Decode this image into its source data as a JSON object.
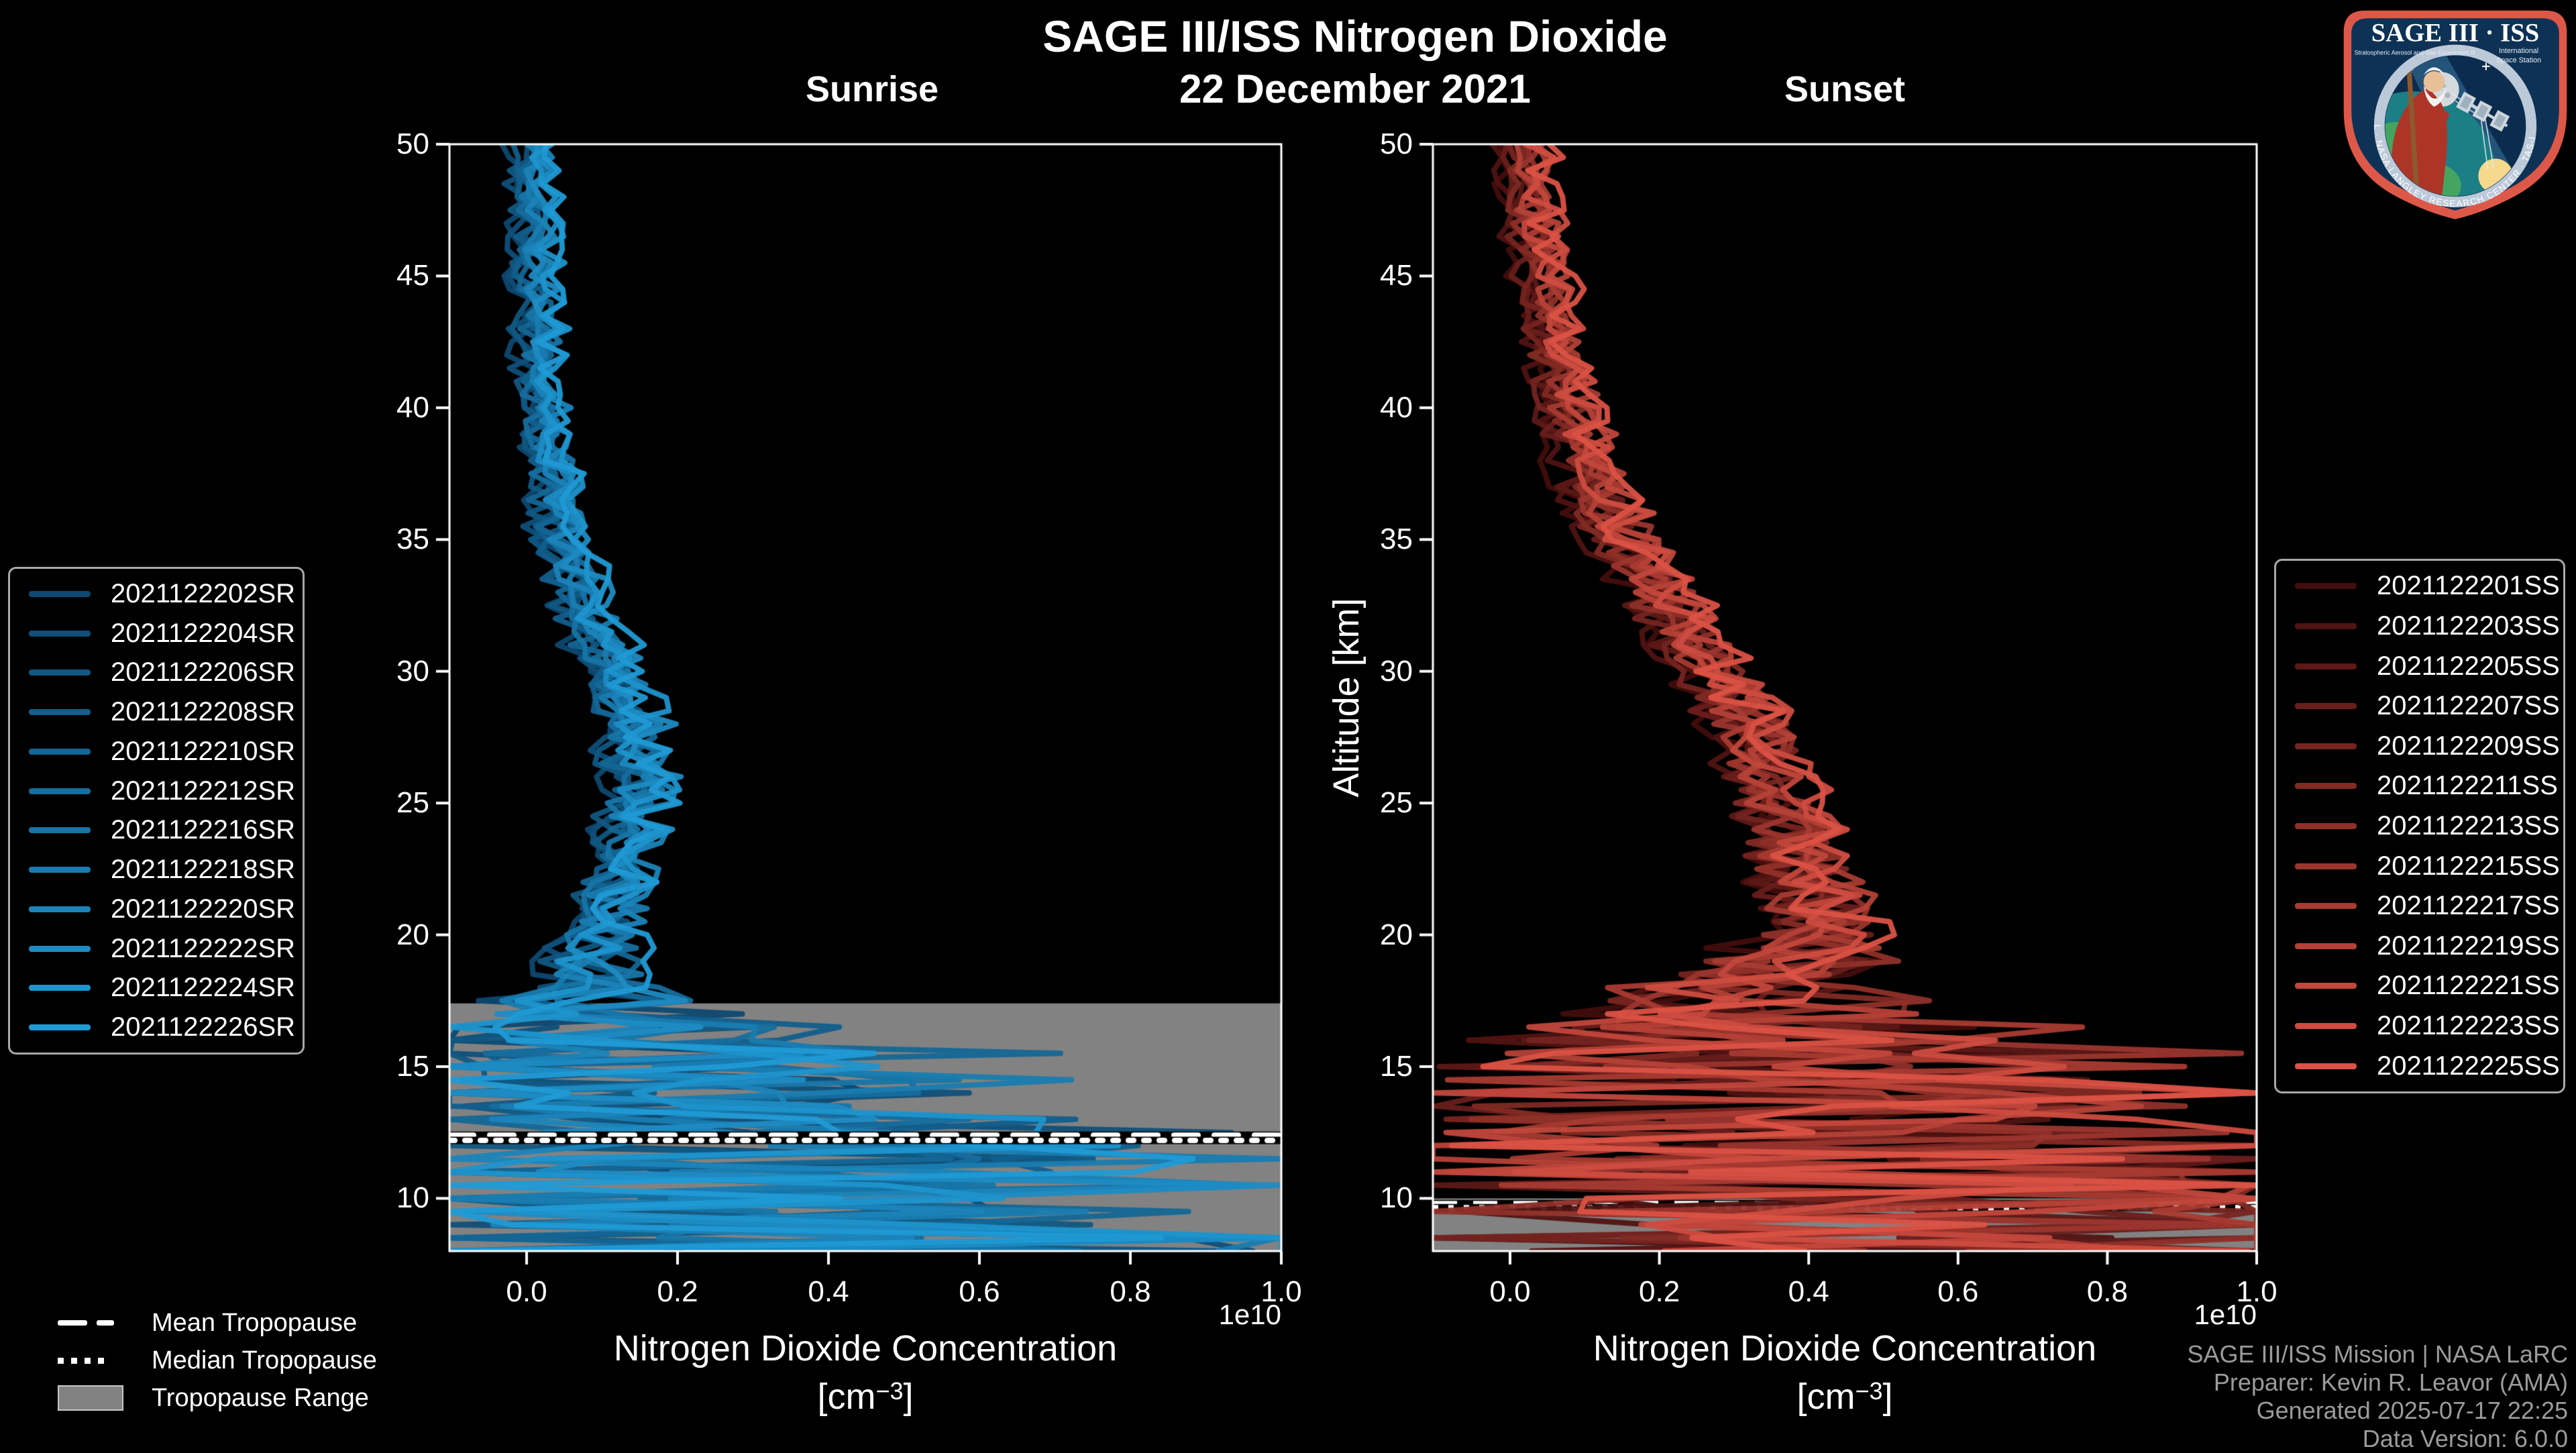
{
  "title": "SAGE III/ISS Nitrogen Dioxide",
  "date": "22 December 2021",
  "panels_header": {
    "left": "Sunrise",
    "right": "Sunset"
  },
  "axes": {
    "ylabel": "Altitude [km]",
    "xlabel": "Nitrogen Dioxide Concentration",
    "xlabel_unit_open": "[cm",
    "xlabel_unit_exp": "−3",
    "xlabel_unit_close": "]",
    "offset_text": "1e10",
    "x_tick_labels": [
      "0.0",
      "0.2",
      "0.4",
      "0.6",
      "0.8",
      "1.0"
    ],
    "y_tick_labels": [
      "10",
      "15",
      "20",
      "25",
      "30",
      "35",
      "40",
      "45",
      "50"
    ]
  },
  "tropopause_legend": {
    "mean": "Mean Tropopause",
    "median": "Median Tropopause",
    "range": "Tropopause Range"
  },
  "attribution": {
    "lines": [
      "SAGE III/ISS Mission | NASA LaRC",
      "Preparer: Kevin R. Leavor (AMA)",
      "Generated 2025-07-17 22:25",
      "Data Version: 6.0.0"
    ]
  },
  "logo": {
    "title": "SAGE III · ISS",
    "subtitle_left": "Stratospheric Aerosol and Gas Experiment III",
    "subtitle_right_1": "International",
    "subtitle_right_2": "Space Station",
    "ring_text": "BALL · NASA LANGLEY RESEARCH CENTER · TAS-I · ESA"
  },
  "colors": {
    "background": "#000000",
    "foreground": "#ffffff",
    "attribution_gray": "#9b9b9b",
    "tropopause_band": "#828282",
    "legend_border": "#a8a8a8",
    "sunrise_dark": "#0d4870",
    "sunrise_bright": "#209ad5",
    "sunset_dark": "#420d0d",
    "sunset_bright": "#db5245"
  },
  "chart_data": {
    "type": "line",
    "x_axis": {
      "label": "Nitrogen Dioxide Concentration [cm^-3]",
      "offset_scale": "1e10",
      "ticks_1e10": [
        0.0,
        0.2,
        0.4,
        0.6,
        0.8,
        1.0
      ],
      "lim_1e10": [
        -0.102,
        1.0
      ]
    },
    "y_axis": {
      "label": "Altitude [km]",
      "ticks_km": [
        10,
        15,
        20,
        25,
        30,
        35,
        40,
        45,
        50
      ],
      "lim_km": [
        8,
        50
      ]
    },
    "altitude_step_km": 0.5,
    "panels": [
      {
        "id": "sunrise",
        "title": "Sunrise",
        "color_dark": "#0d4870",
        "color_bright": "#209ad5",
        "series": [
          {
            "name": "2021122202SR",
            "seed": 101
          },
          {
            "name": "2021122204SR",
            "seed": 102
          },
          {
            "name": "2021122206SR",
            "seed": 103
          },
          {
            "name": "2021122208SR",
            "seed": 104
          },
          {
            "name": "2021122210SR",
            "seed": 105
          },
          {
            "name": "2021122212SR",
            "seed": 106
          },
          {
            "name": "2021122216SR",
            "seed": 107
          },
          {
            "name": "2021122218SR",
            "seed": 108
          },
          {
            "name": "2021122220SR",
            "seed": 109
          },
          {
            "name": "2021122222SR",
            "seed": 110
          },
          {
            "name": "2021122224SR",
            "seed": 111
          },
          {
            "name": "2021122226SR",
            "seed": 112
          }
        ],
        "profile": {
          "altitude_km": [
            50,
            47,
            44,
            41,
            38,
            35,
            32,
            30,
            28,
            26,
            24,
            22,
            20,
            18.5,
            17,
            15.5,
            14,
            12.5,
            11,
            9.5,
            8
          ],
          "mean_1e10": [
            0.005,
            0.01,
            0.015,
            0.02,
            0.03,
            0.045,
            0.08,
            0.12,
            0.145,
            0.15,
            0.14,
            0.12,
            0.1,
            0.09,
            0.12,
            0.14,
            0.18,
            0.28,
            0.35,
            0.42,
            0.48
          ],
          "sigma_1e10": [
            0.02,
            0.02,
            0.025,
            0.025,
            0.03,
            0.03,
            0.035,
            0.04,
            0.045,
            0.045,
            0.04,
            0.04,
            0.05,
            0.08,
            0.2,
            0.33,
            0.45,
            0.52,
            0.58,
            0.62,
            0.65
          ]
        },
        "tropopause": {
          "mean_km": 12.4,
          "median_km": 12.2,
          "range_top_km": 17.4,
          "range_bottom_km": 8.0,
          "band_visible": true,
          "lines_above_data": true
        }
      },
      {
        "id": "sunset",
        "title": "Sunset",
        "color_dark": "#420d0d",
        "color_bright": "#db5245",
        "series": [
          {
            "name": "2021122201SS",
            "seed": 201
          },
          {
            "name": "2021122203SS",
            "seed": 202
          },
          {
            "name": "2021122205SS",
            "seed": 203
          },
          {
            "name": "2021122207SS",
            "seed": 204
          },
          {
            "name": "2021122209SS",
            "seed": 205
          },
          {
            "name": "2021122211SS",
            "seed": 206
          },
          {
            "name": "2021122213SS",
            "seed": 207
          },
          {
            "name": "2021122215SS",
            "seed": 208
          },
          {
            "name": "2021122217SS",
            "seed": 209
          },
          {
            "name": "2021122219SS",
            "seed": 210
          },
          {
            "name": "2021122221SS",
            "seed": 211
          },
          {
            "name": "2021122223SS",
            "seed": 212
          },
          {
            "name": "2021122225SS",
            "seed": 213
          }
        ],
        "profile": {
          "altitude_km": [
            50,
            47,
            44,
            41,
            38,
            35,
            32,
            30,
            28,
            26,
            24,
            22,
            20,
            18.5,
            17,
            15.5,
            14,
            12.5,
            11,
            9.5,
            8
          ],
          "mean_1e10": [
            0.02,
            0.03,
            0.05,
            0.07,
            0.1,
            0.15,
            0.22,
            0.27,
            0.32,
            0.35,
            0.37,
            0.4,
            0.42,
            0.35,
            0.3,
            0.32,
            0.38,
            0.45,
            0.5,
            0.52,
            0.55
          ],
          "sigma_1e10": [
            0.025,
            0.03,
            0.03,
            0.035,
            0.04,
            0.045,
            0.05,
            0.05,
            0.055,
            0.06,
            0.065,
            0.07,
            0.09,
            0.18,
            0.28,
            0.38,
            0.5,
            0.58,
            0.62,
            0.66,
            0.68
          ]
        },
        "tropopause": {
          "mean_km": 9.8,
          "median_km": 9.65,
          "range_top_km": 10.0,
          "range_bottom_km": 8.0,
          "band_visible": true,
          "lines_above_data": false
        }
      }
    ]
  }
}
